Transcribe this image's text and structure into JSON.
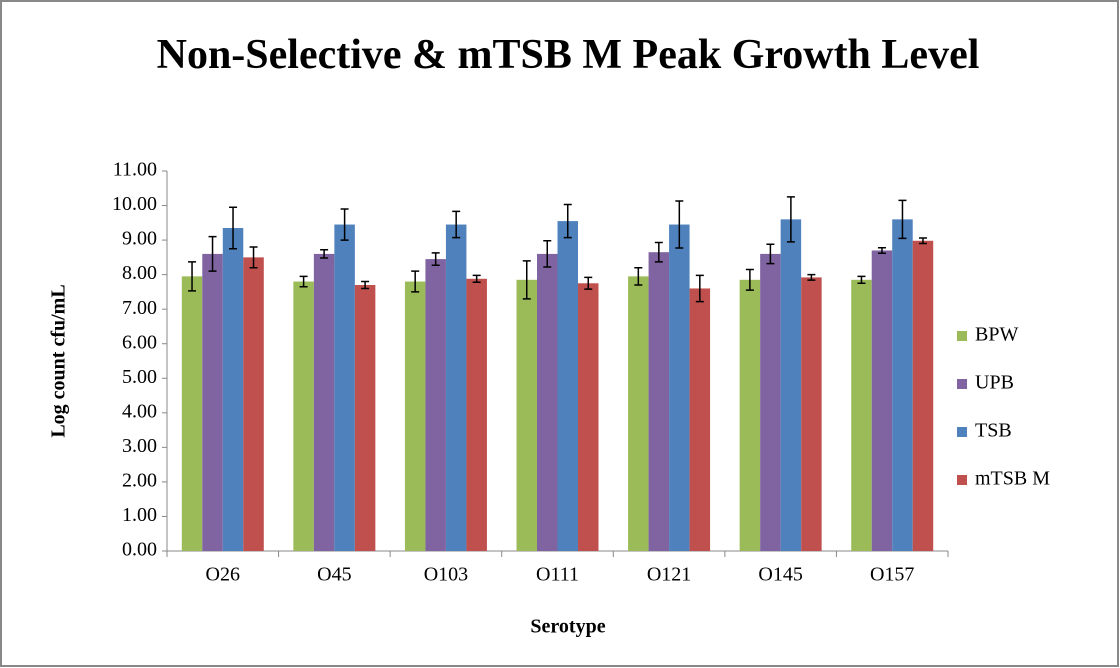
{
  "chart_data": {
    "type": "bar",
    "title": "Non-Selective & mTSB M Peak Growth Level",
    "x_label": "Serotype",
    "y_label": "Log count cfu/mL",
    "categories": [
      "O26",
      "O45",
      "O103",
      "O111",
      "O121",
      "O145",
      "O157"
    ],
    "series": [
      {
        "name": "BPW",
        "color": "#9bbb59",
        "values": [
          7.95,
          7.8,
          7.8,
          7.85,
          7.95,
          7.85,
          7.85
        ],
        "errors": [
          0.42,
          0.15,
          0.3,
          0.55,
          0.25,
          0.3,
          0.1
        ]
      },
      {
        "name": "UPB",
        "color": "#8064a2",
        "values": [
          8.6,
          8.6,
          8.45,
          8.6,
          8.65,
          8.6,
          8.7
        ],
        "errors": [
          0.5,
          0.12,
          0.18,
          0.38,
          0.28,
          0.28,
          0.08
        ]
      },
      {
        "name": "TSB",
        "color": "#4f81bd",
        "values": [
          9.35,
          9.45,
          9.45,
          9.55,
          9.45,
          9.6,
          9.6
        ],
        "errors": [
          0.6,
          0.45,
          0.38,
          0.48,
          0.68,
          0.65,
          0.55
        ]
      },
      {
        "name": "mTSB M",
        "color": "#c0504d",
        "values": [
          8.5,
          7.7,
          7.88,
          7.75,
          7.6,
          7.92,
          8.98
        ],
        "errors": [
          0.3,
          0.1,
          0.1,
          0.17,
          0.38,
          0.08,
          0.08
        ]
      }
    ],
    "ylim": [
      0,
      11
    ],
    "yticks": [
      {
        "value": 0,
        "label": "0.00"
      },
      {
        "value": 1,
        "label": "1.00"
      },
      {
        "value": 2,
        "label": "2.00"
      },
      {
        "value": 3,
        "label": "3.00"
      },
      {
        "value": 4,
        "label": "4.00"
      },
      {
        "value": 5,
        "label": "5.00"
      },
      {
        "value": 6,
        "label": "6.00"
      },
      {
        "value": 7,
        "label": "7.00"
      },
      {
        "value": 8,
        "label": "8.00"
      },
      {
        "value": 9,
        "label": "9.00"
      },
      {
        "value": 10,
        "label": "10.00"
      },
      {
        "value": 11,
        "label": "11.00"
      }
    ],
    "grid": false,
    "legend": "right"
  }
}
